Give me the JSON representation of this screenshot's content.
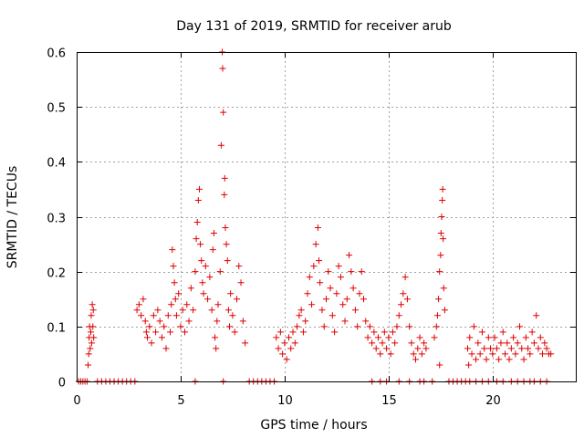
{
  "chart_data": {
    "type": "scatter",
    "title": "Day 131 of 2019, SRMTID for receiver arub",
    "xlabel": "GPS time / hours",
    "ylabel": "SRMTID / TECUs",
    "xlim": [
      0,
      24
    ],
    "ylim": [
      0,
      0.6
    ],
    "xticks": [
      0,
      5,
      10,
      15,
      20
    ],
    "xtick_labels": [
      "0",
      "5",
      "10",
      "15",
      "20"
    ],
    "yticks": [
      0,
      0.1,
      0.2,
      0.3,
      0.4,
      0.5,
      0.6
    ],
    "ytick_labels": [
      "0",
      "0.1",
      "0.2",
      "0.3",
      "0.4",
      "0.5",
      "0.6"
    ],
    "grid": true,
    "marker": "+",
    "color": "#e00000",
    "series": [
      {
        "name": "SRMTID",
        "points": [
          [
            0.1,
            0
          ],
          [
            0.2,
            0
          ],
          [
            0.3,
            0
          ],
          [
            0.4,
            0
          ],
          [
            0.5,
            0
          ],
          [
            0.55,
            0.03
          ],
          [
            0.58,
            0.05
          ],
          [
            0.6,
            0.08
          ],
          [
            0.62,
            0.1
          ],
          [
            0.65,
            0.06
          ],
          [
            0.68,
            0.09
          ],
          [
            0.7,
            0.12
          ],
          [
            0.72,
            0.07
          ],
          [
            0.75,
            0.14
          ],
          [
            0.78,
            0.1
          ],
          [
            0.8,
            0.13
          ],
          [
            0.82,
            0.08
          ],
          [
            1.0,
            0
          ],
          [
            1.2,
            0
          ],
          [
            1.4,
            0
          ],
          [
            1.6,
            0
          ],
          [
            1.8,
            0
          ],
          [
            2.0,
            0
          ],
          [
            2.2,
            0
          ],
          [
            2.4,
            0
          ],
          [
            2.6,
            0
          ],
          [
            2.8,
            0
          ],
          [
            2.9,
            0.13
          ],
          [
            3.0,
            0.14
          ],
          [
            3.1,
            0.12
          ],
          [
            3.2,
            0.15
          ],
          [
            3.3,
            0.11
          ],
          [
            3.35,
            0.09
          ],
          [
            3.4,
            0.08
          ],
          [
            3.5,
            0.1
          ],
          [
            3.6,
            0.07
          ],
          [
            3.7,
            0.12
          ],
          [
            3.8,
            0.09
          ],
          [
            3.9,
            0.13
          ],
          [
            4.0,
            0.11
          ],
          [
            4.1,
            0.08
          ],
          [
            4.2,
            0.1
          ],
          [
            4.3,
            0.06
          ],
          [
            4.4,
            0.12
          ],
          [
            4.5,
            0.09
          ],
          [
            4.55,
            0.14
          ],
          [
            4.6,
            0.24
          ],
          [
            4.65,
            0.21
          ],
          [
            4.7,
            0.18
          ],
          [
            4.75,
            0.15
          ],
          [
            4.8,
            0.12
          ],
          [
            4.9,
            0.16
          ],
          [
            5.0,
            0.1
          ],
          [
            5.1,
            0.13
          ],
          [
            5.2,
            0.09
          ],
          [
            5.3,
            0.14
          ],
          [
            5.4,
            0.11
          ],
          [
            5.5,
            0.17
          ],
          [
            5.6,
            0.13
          ],
          [
            5.7,
            0.2
          ],
          [
            5.75,
            0.26
          ],
          [
            5.8,
            0.29
          ],
          [
            5.85,
            0.33
          ],
          [
            5.9,
            0.35
          ],
          [
            5.95,
            0.25
          ],
          [
            6.0,
            0.22
          ],
          [
            6.05,
            0.18
          ],
          [
            6.1,
            0.16
          ],
          [
            6.2,
            0.21
          ],
          [
            6.3,
            0.15
          ],
          [
            6.4,
            0.19
          ],
          [
            6.5,
            0.13
          ],
          [
            6.55,
            0.24
          ],
          [
            6.6,
            0.27
          ],
          [
            6.65,
            0.08
          ],
          [
            6.7,
            0.06
          ],
          [
            6.75,
            0.11
          ],
          [
            6.8,
            0.14
          ],
          [
            6.9,
            0.2
          ],
          [
            6.95,
            0.43
          ],
          [
            7.0,
            0.6
          ],
          [
            7.02,
            0.57
          ],
          [
            7.05,
            0.49
          ],
          [
            7.1,
            0.34
          ],
          [
            7.12,
            0.37
          ],
          [
            7.15,
            0.28
          ],
          [
            7.2,
            0.25
          ],
          [
            7.25,
            0.22
          ],
          [
            7.3,
            0.13
          ],
          [
            7.35,
            0.1
          ],
          [
            7.4,
            0.16
          ],
          [
            7.5,
            0.12
          ],
          [
            7.6,
            0.09
          ],
          [
            7.7,
            0.15
          ],
          [
            7.8,
            0.21
          ],
          [
            7.9,
            0.18
          ],
          [
            8.0,
            0.11
          ],
          [
            8.1,
            0.07
          ],
          [
            5.7,
            0
          ],
          [
            7.05,
            0
          ],
          [
            8.3,
            0
          ],
          [
            8.5,
            0
          ],
          [
            8.7,
            0
          ],
          [
            8.9,
            0
          ],
          [
            9.1,
            0
          ],
          [
            9.3,
            0
          ],
          [
            9.5,
            0
          ],
          [
            9.6,
            0.08
          ],
          [
            9.7,
            0.06
          ],
          [
            9.8,
            0.09
          ],
          [
            9.9,
            0.05
          ],
          [
            10.0,
            0.07
          ],
          [
            10.1,
            0.04
          ],
          [
            10.2,
            0.08
          ],
          [
            10.3,
            0.06
          ],
          [
            10.4,
            0.09
          ],
          [
            10.5,
            0.07
          ],
          [
            10.6,
            0.1
          ],
          [
            10.7,
            0.12
          ],
          [
            10.8,
            0.13
          ],
          [
            10.9,
            0.09
          ],
          [
            11.0,
            0.11
          ],
          [
            11.1,
            0.16
          ],
          [
            11.2,
            0.19
          ],
          [
            11.3,
            0.14
          ],
          [
            11.4,
            0.21
          ],
          [
            11.5,
            0.25
          ],
          [
            11.6,
            0.28
          ],
          [
            11.65,
            0.22
          ],
          [
            11.7,
            0.18
          ],
          [
            11.8,
            0.13
          ],
          [
            11.9,
            0.1
          ],
          [
            12.0,
            0.15
          ],
          [
            12.1,
            0.2
          ],
          [
            12.2,
            0.17
          ],
          [
            12.3,
            0.12
          ],
          [
            12.4,
            0.09
          ],
          [
            12.5,
            0.16
          ],
          [
            12.6,
            0.21
          ],
          [
            12.7,
            0.19
          ],
          [
            12.8,
            0.14
          ],
          [
            12.9,
            0.11
          ],
          [
            13.0,
            0.15
          ],
          [
            13.1,
            0.23
          ],
          [
            13.2,
            0.2
          ],
          [
            13.3,
            0.17
          ],
          [
            13.4,
            0.13
          ],
          [
            13.5,
            0.1
          ],
          [
            13.6,
            0.16
          ],
          [
            13.7,
            0.2
          ],
          [
            13.8,
            0.15
          ],
          [
            13.9,
            0.11
          ],
          [
            14.0,
            0.08
          ],
          [
            14.1,
            0.1
          ],
          [
            14.2,
            0.07
          ],
          [
            14.3,
            0.09
          ],
          [
            14.4,
            0.06
          ],
          [
            14.5,
            0.08
          ],
          [
            14.6,
            0.05
          ],
          [
            14.7,
            0.07
          ],
          [
            14.8,
            0.09
          ],
          [
            14.9,
            0.06
          ],
          [
            15.0,
            0.08
          ],
          [
            15.1,
            0.05
          ],
          [
            15.2,
            0.09
          ],
          [
            15.3,
            0.07
          ],
          [
            15.4,
            0.1
          ],
          [
            15.5,
            0.12
          ],
          [
            15.6,
            0.14
          ],
          [
            15.7,
            0.16
          ],
          [
            15.8,
            0.19
          ],
          [
            15.9,
            0.15
          ],
          [
            16.0,
            0.1
          ],
          [
            16.1,
            0.07
          ],
          [
            16.2,
            0.05
          ],
          [
            16.3,
            0.04
          ],
          [
            16.4,
            0.06
          ],
          [
            16.5,
            0.08
          ],
          [
            16.6,
            0.05
          ],
          [
            16.7,
            0.07
          ],
          [
            16.8,
            0.06
          ],
          [
            17.2,
            0.08
          ],
          [
            17.3,
            0.1
          ],
          [
            17.35,
            0.12
          ],
          [
            17.4,
            0.15
          ],
          [
            17.45,
            0.2
          ],
          [
            17.5,
            0.23
          ],
          [
            17.52,
            0.27
          ],
          [
            17.55,
            0.3
          ],
          [
            17.58,
            0.33
          ],
          [
            17.6,
            0.35
          ],
          [
            17.62,
            0.26
          ],
          [
            17.65,
            0.17
          ],
          [
            17.7,
            0.13
          ],
          [
            17.45,
            0.03
          ],
          [
            14.2,
            0
          ],
          [
            14.6,
            0
          ],
          [
            14.9,
            0
          ],
          [
            15.5,
            0
          ],
          [
            16.0,
            0
          ],
          [
            16.5,
            0
          ],
          [
            16.7,
            0
          ],
          [
            17.1,
            0
          ],
          [
            17.9,
            0
          ],
          [
            18.1,
            0
          ],
          [
            18.3,
            0
          ],
          [
            18.5,
            0
          ],
          [
            18.7,
            0
          ],
          [
            18.8,
            0.06
          ],
          [
            18.85,
            0.03
          ],
          [
            18.9,
            0.08
          ],
          [
            19.0,
            0.05
          ],
          [
            19.1,
            0.1
          ],
          [
            19.2,
            0.04
          ],
          [
            19.3,
            0.07
          ],
          [
            19.4,
            0.05
          ],
          [
            19.5,
            0.09
          ],
          [
            19.6,
            0.06
          ],
          [
            19.7,
            0.04
          ],
          [
            19.8,
            0.08
          ],
          [
            19.9,
            0.06
          ],
          [
            20.0,
            0.05
          ],
          [
            20.1,
            0.08
          ],
          [
            20.2,
            0.06
          ],
          [
            20.3,
            0.04
          ],
          [
            20.4,
            0.07
          ],
          [
            20.5,
            0.09
          ],
          [
            20.6,
            0.05
          ],
          [
            20.7,
            0.07
          ],
          [
            20.8,
            0.04
          ],
          [
            20.9,
            0.06
          ],
          [
            21.0,
            0.08
          ],
          [
            21.1,
            0.05
          ],
          [
            21.2,
            0.07
          ],
          [
            21.3,
            0.1
          ],
          [
            21.4,
            0.06
          ],
          [
            21.5,
            0.04
          ],
          [
            21.6,
            0.08
          ],
          [
            21.7,
            0.06
          ],
          [
            21.8,
            0.05
          ],
          [
            21.9,
            0.09
          ],
          [
            22.0,
            0.07
          ],
          [
            22.1,
            0.12
          ],
          [
            22.2,
            0.06
          ],
          [
            22.3,
            0.08
          ],
          [
            22.4,
            0.05
          ],
          [
            22.5,
            0.07
          ],
          [
            22.6,
            0.06
          ],
          [
            22.7,
            0.05
          ],
          [
            22.8,
            0.05
          ],
          [
            18.9,
            0
          ],
          [
            19.2,
            0
          ],
          [
            19.5,
            0
          ],
          [
            19.8,
            0
          ],
          [
            20.2,
            0
          ],
          [
            20.5,
            0
          ],
          [
            20.9,
            0
          ],
          [
            21.2,
            0
          ],
          [
            21.5,
            0
          ],
          [
            21.8,
            0
          ],
          [
            22.0,
            0
          ],
          [
            22.3,
            0
          ],
          [
            22.6,
            0
          ]
        ]
      }
    ]
  }
}
